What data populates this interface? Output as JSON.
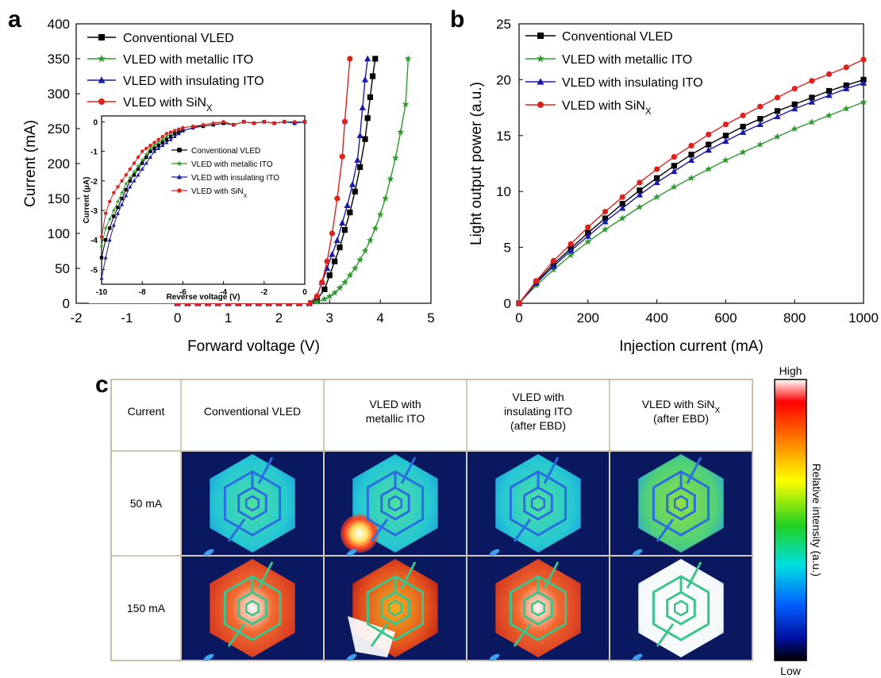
{
  "panels": {
    "a": "a",
    "b": "b",
    "c": "c"
  },
  "colors": {
    "conventional": "#000000",
    "metallic": "#2e9a2e",
    "insulating": "#1a1aa8",
    "sinx": "#e0201c",
    "table_border": "#b8a98a"
  },
  "chart_data": [
    {
      "id": "a",
      "type": "line",
      "xlabel": "Forward voltage (V)",
      "ylabel": "Current (mA)",
      "xlim": [
        -2,
        5
      ],
      "ylim": [
        0,
        400
      ],
      "xticks": [
        "-2",
        "-1",
        "0",
        "1",
        "2",
        "3",
        "4",
        "5"
      ],
      "yticks": [
        "0",
        "50",
        "100",
        "150",
        "200",
        "250",
        "300",
        "350",
        "400"
      ],
      "legend_position": "top-left",
      "series": [
        {
          "name": "Conventional VLED",
          "key": "conventional",
          "marker": "square",
          "x": [
            0.0,
            0.2,
            0.4,
            0.6,
            0.8,
            1.0,
            1.2,
            1.4,
            1.6,
            1.8,
            2.0,
            2.2,
            2.4,
            2.6,
            2.75,
            2.9,
            3.0,
            3.1,
            3.2,
            3.3,
            3.4,
            3.5,
            3.6,
            3.7,
            3.75,
            3.8,
            3.85,
            3.9
          ],
          "y": [
            0,
            0,
            0,
            0,
            0,
            0,
            0,
            0,
            0,
            0,
            0,
            0,
            0,
            0,
            5,
            20,
            40,
            60,
            80,
            105,
            130,
            160,
            195,
            235,
            265,
            295,
            325,
            350
          ]
        },
        {
          "name": "VLED with metallic ITO",
          "key": "metallic",
          "marker": "star",
          "x": [
            0.0,
            0.2,
            0.4,
            0.6,
            0.8,
            1.0,
            1.2,
            1.4,
            1.6,
            1.8,
            2.0,
            2.2,
            2.4,
            2.6,
            2.75,
            2.9,
            3.0,
            3.1,
            3.2,
            3.3,
            3.4,
            3.5,
            3.6,
            3.7,
            3.8,
            3.9,
            4.0,
            4.1,
            4.2,
            4.3,
            4.4,
            4.5,
            4.55
          ],
          "y": [
            0,
            0,
            0,
            0,
            0,
            0,
            0,
            0,
            0,
            0,
            0,
            0,
            0,
            0,
            2,
            6,
            10,
            15,
            22,
            30,
            40,
            50,
            62,
            75,
            90,
            107,
            127,
            150,
            178,
            208,
            245,
            285,
            350
          ]
        },
        {
          "name": "VLED with insulating ITO",
          "key": "insulating",
          "marker": "triangle",
          "x": [
            0.0,
            0.2,
            0.4,
            0.6,
            0.8,
            1.0,
            1.2,
            1.4,
            1.6,
            1.8,
            2.0,
            2.2,
            2.4,
            2.6,
            2.75,
            2.85,
            2.95,
            3.05,
            3.15,
            3.25,
            3.35,
            3.45,
            3.55,
            3.6,
            3.65,
            3.7,
            3.75
          ],
          "y": [
            0,
            0,
            0,
            0,
            0,
            0,
            0,
            0,
            0,
            0,
            0,
            0,
            0,
            0,
            10,
            30,
            50,
            70,
            90,
            115,
            140,
            170,
            205,
            240,
            280,
            320,
            350
          ]
        },
        {
          "name": "VLED with SiN<sub>X</sub>",
          "key": "sinx",
          "marker": "circle",
          "x": [
            0.0,
            0.2,
            0.4,
            0.6,
            0.8,
            1.0,
            1.2,
            1.4,
            1.6,
            1.8,
            2.0,
            2.2,
            2.4,
            2.6,
            2.75,
            2.85,
            2.95,
            3.05,
            3.15,
            3.25,
            3.3,
            3.4
          ],
          "y": [
            0,
            0,
            0,
            0,
            0,
            0,
            0,
            0,
            0,
            0,
            0,
            0,
            0,
            0,
            10,
            30,
            60,
            100,
            150,
            210,
            260,
            350
          ]
        }
      ],
      "inset": {
        "xlabel": "Reverse voltage (V)",
        "ylabel": "Current (μA)",
        "xlim": [
          -10,
          0
        ],
        "ylim": [
          -5.5,
          0.2
        ],
        "xticks": [
          "-10",
          "-8",
          "-6",
          "-4",
          "-2",
          "0"
        ],
        "yticks": [
          "0",
          "-1",
          "-2",
          "-3",
          "-4",
          "-5"
        ],
        "legend": [
          "Conventional VLED",
          "VLED with metallic ITO",
          "VLED with insulating ITO",
          "VLED with SiN<sub>X</sub>"
        ],
        "series": [
          {
            "key": "conventional",
            "marker": "square",
            "x": [
              -10,
              -9.8,
              -9.6,
              -9.4,
              -9.2,
              -9.0,
              -8.8,
              -8.6,
              -8.4,
              -8.2,
              -8.0,
              -7.8,
              -7.6,
              -7.4,
              -7.2,
              -7.0,
              -6.8,
              -6.6,
              -6.4,
              -6.2,
              -6.0,
              -5.5,
              -5.0,
              -4.5,
              -4.0,
              -3.5,
              -3.0,
              -2.5,
              -2.0,
              -1.5,
              -1.0,
              -0.5,
              0
            ],
            "y": [
              -4.6,
              -4.0,
              -3.6,
              -3.2,
              -2.9,
              -2.6,
              -2.3,
              -2.0,
              -1.8,
              -1.6,
              -1.4,
              -1.2,
              -1.0,
              -0.9,
              -0.8,
              -0.7,
              -0.6,
              -0.5,
              -0.4,
              -0.35,
              -0.3,
              -0.2,
              -0.15,
              -0.1,
              -0.05,
              -0.1,
              0,
              -0.05,
              0,
              -0.05,
              0,
              -0.05,
              0
            ]
          },
          {
            "key": "metallic",
            "marker": "star",
            "x": [
              -10,
              -9.8,
              -9.6,
              -9.4,
              -9.2,
              -9.0,
              -8.8,
              -8.6,
              -8.4,
              -8.2,
              -8.0,
              -7.8,
              -7.6,
              -7.4,
              -7.2,
              -7.0,
              -6.8,
              -6.6,
              -6.4,
              -6.2,
              -6.0,
              -5.5,
              -5.0,
              -4.5,
              -4.0,
              -3.5,
              -3.0,
              -2.5,
              -2.0,
              -1.5,
              -1.0,
              -0.5,
              0
            ],
            "y": [
              -4.2,
              -3.6,
              -3.3,
              -3.0,
              -2.7,
              -2.4,
              -2.1,
              -1.9,
              -1.7,
              -1.5,
              -1.3,
              -1.1,
              -0.9,
              -0.8,
              -0.7,
              -0.6,
              -0.5,
              -0.4,
              -0.3,
              -0.25,
              -0.2,
              -0.15,
              -0.1,
              -0.05,
              0,
              -0.1,
              0,
              -0.05,
              0,
              -0.05,
              0,
              0,
              0
            ]
          },
          {
            "key": "insulating",
            "marker": "triangle",
            "x": [
              -10,
              -9.8,
              -9.6,
              -9.4,
              -9.2,
              -9.0,
              -8.8,
              -8.6,
              -8.4,
              -8.2,
              -8.0,
              -7.8,
              -7.6,
              -7.4,
              -7.2,
              -7.0,
              -6.8,
              -6.6,
              -6.4,
              -6.2,
              -6.0,
              -5.5,
              -5.0,
              -4.5,
              -4.0,
              -3.5,
              -3.0,
              -2.5,
              -2.0,
              -1.5,
              -1.0,
              -0.5,
              0
            ],
            "y": [
              -5.3,
              -4.6,
              -4.0,
              -3.5,
              -3.1,
              -2.8,
              -2.5,
              -2.2,
              -2.0,
              -1.8,
              -1.6,
              -1.4,
              -1.2,
              -1.0,
              -0.9,
              -0.8,
              -0.7,
              -0.6,
              -0.5,
              -0.4,
              -0.3,
              -0.2,
              -0.1,
              -0.05,
              0,
              -0.1,
              0,
              -0.05,
              0,
              -0.05,
              0,
              -0.05,
              0
            ]
          },
          {
            "key": "sinx",
            "marker": "circle",
            "x": [
              -10,
              -9.8,
              -9.6,
              -9.4,
              -9.2,
              -9.0,
              -8.8,
              -8.6,
              -8.4,
              -8.2,
              -8.0,
              -7.8,
              -7.6,
              -7.4,
              -7.2,
              -7.0,
              -6.8,
              -6.6,
              -6.4,
              -6.2,
              -6.0,
              -5.5,
              -5.0,
              -4.5,
              -4.0,
              -3.5,
              -3.0,
              -2.5,
              -2.0,
              -1.5,
              -1.0,
              -0.5,
              0
            ],
            "y": [
              -3.9,
              -3.1,
              -2.7,
              -2.4,
              -2.2,
              -2.0,
              -1.8,
              -1.6,
              -1.4,
              -1.2,
              -1.0,
              -0.9,
              -0.8,
              -0.7,
              -0.6,
              -0.5,
              -0.4,
              -0.35,
              -0.3,
              -0.25,
              -0.2,
              -0.15,
              -0.1,
              -0.05,
              0,
              -0.1,
              0,
              -0.05,
              0,
              -0.05,
              0,
              0,
              0
            ]
          }
        ]
      }
    },
    {
      "id": "b",
      "type": "line",
      "xlabel": "Injection current (mA)",
      "ylabel": "Light output power (a.u.)",
      "xlim": [
        0,
        1000
      ],
      "ylim": [
        0,
        25
      ],
      "xticks": [
        "0",
        "200",
        "400",
        "600",
        "800",
        "1000"
      ],
      "yticks": [
        "0",
        "5",
        "10",
        "15",
        "20",
        "25"
      ],
      "legend_position": "top-left",
      "x": [
        0,
        50,
        100,
        150,
        200,
        250,
        300,
        350,
        400,
        450,
        500,
        550,
        600,
        650,
        700,
        750,
        800,
        850,
        900,
        950,
        1000
      ],
      "series": [
        {
          "name": "Conventional VLED",
          "key": "conventional",
          "marker": "square",
          "y": [
            0,
            1.9,
            3.5,
            4.9,
            6.3,
            7.6,
            8.9,
            10.1,
            11.2,
            12.3,
            13.3,
            14.2,
            15.0,
            15.8,
            16.5,
            17.2,
            17.8,
            18.4,
            19.0,
            19.5,
            20.0
          ]
        },
        {
          "name": "VLED with metallic ITO",
          "key": "metallic",
          "marker": "star",
          "y": [
            0,
            1.6,
            3.0,
            4.3,
            5.5,
            6.6,
            7.6,
            8.6,
            9.5,
            10.4,
            11.2,
            12.0,
            12.8,
            13.5,
            14.2,
            14.9,
            15.6,
            16.2,
            16.8,
            17.4,
            18.0
          ]
        },
        {
          "name": "VLED with insulating ITO",
          "key": "insulating",
          "marker": "triangle",
          "y": [
            0,
            1.8,
            3.3,
            4.7,
            6.0,
            7.3,
            8.5,
            9.7,
            10.8,
            11.8,
            12.8,
            13.7,
            14.5,
            15.3,
            16.0,
            16.7,
            17.4,
            18.0,
            18.6,
            19.2,
            19.7
          ]
        },
        {
          "name": "VLED with SiN<sub>X</sub>",
          "key": "sinx",
          "marker": "circle",
          "y": [
            0,
            2.0,
            3.8,
            5.3,
            6.8,
            8.2,
            9.5,
            10.8,
            12.0,
            13.1,
            14.1,
            15.1,
            16.0,
            16.8,
            17.6,
            18.4,
            19.2,
            19.9,
            20.5,
            21.1,
            21.8
          ]
        }
      ]
    }
  ],
  "table": {
    "header": [
      "Current",
      "Conventional VLED",
      "VLED with\nmetallic ITO",
      "VLED with\ninsulating ITO\n(after EBD)",
      "VLED with SiN<sub>X</sub>\n(after EBD)"
    ],
    "rows": [
      {
        "label": "50 mA",
        "images": [
          "uniform",
          "hotspot",
          "uniform",
          "uniform"
        ]
      },
      {
        "label": "150 mA",
        "images": [
          "saturated",
          "hotspot",
          "saturated",
          "white"
        ]
      }
    ]
  },
  "colorbar": {
    "high": "High",
    "low": "Low",
    "label": "Relative intensity (a.u.)"
  }
}
